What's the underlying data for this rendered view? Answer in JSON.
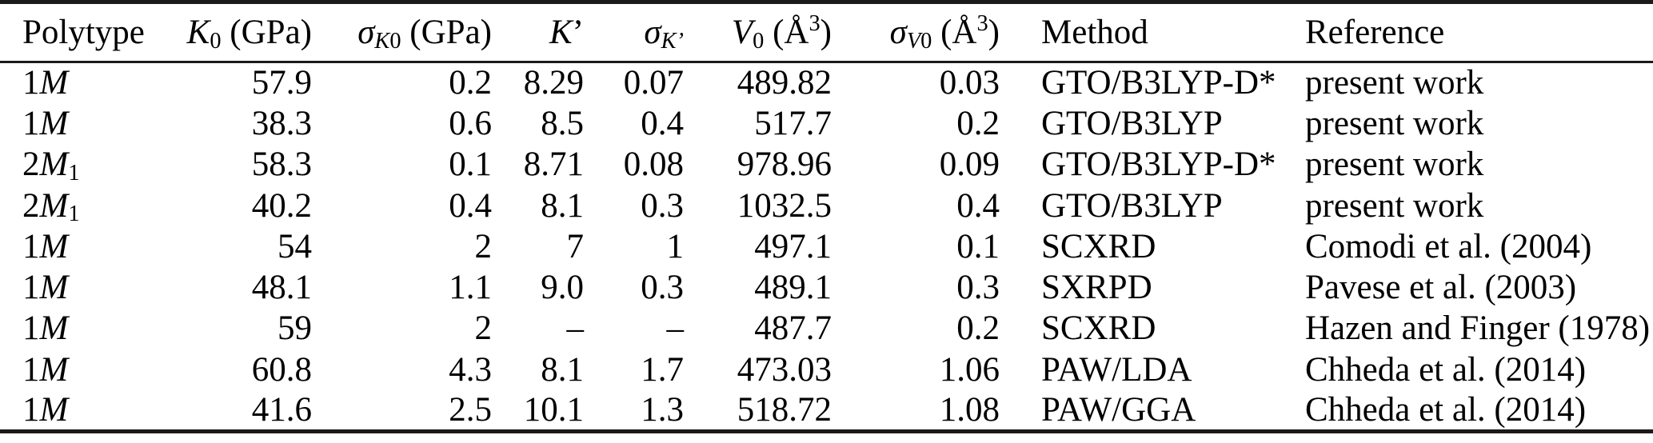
{
  "table": {
    "colors": {
      "text": "#000000",
      "rule": "#1a1a1a",
      "background": "#ffffff"
    },
    "columns": [
      {
        "name": "polytype",
        "align": "left",
        "label": [
          [
            "n",
            "Polytype"
          ]
        ]
      },
      {
        "name": "k0",
        "align": "right",
        "label": [
          [
            "i",
            "K"
          ],
          [
            "sub",
            "0"
          ],
          [
            "n",
            " (GPa)"
          ]
        ]
      },
      {
        "name": "sigma-k0",
        "align": "right",
        "label": [
          [
            "i",
            "σ"
          ],
          [
            "subi",
            "K"
          ],
          [
            "sub",
            "0"
          ],
          [
            "n",
            " (GPa)"
          ]
        ]
      },
      {
        "name": "k-prime",
        "align": "right",
        "label": [
          [
            "i",
            "K"
          ],
          [
            "n",
            "’"
          ]
        ]
      },
      {
        "name": "sigma-k-prime",
        "align": "right",
        "label": [
          [
            "i",
            "σ"
          ],
          [
            "subi",
            "K’"
          ]
        ]
      },
      {
        "name": "v0",
        "align": "right",
        "label": [
          [
            "i",
            "V"
          ],
          [
            "sub",
            "0"
          ],
          [
            "n",
            " (Å"
          ],
          [
            "sup",
            "3"
          ],
          [
            "n",
            ")"
          ]
        ]
      },
      {
        "name": "sigma-v0",
        "align": "right",
        "label": [
          [
            "i",
            "σ"
          ],
          [
            "subi",
            "V"
          ],
          [
            "sub",
            "0"
          ],
          [
            "n",
            " (Å"
          ],
          [
            "sup",
            "3"
          ],
          [
            "n",
            ")"
          ]
        ]
      },
      {
        "name": "method",
        "align": "left",
        "label": [
          [
            "n",
            "Method"
          ]
        ]
      },
      {
        "name": "reference",
        "align": "left",
        "label": [
          [
            "n",
            "Reference"
          ]
        ]
      }
    ],
    "rows": [
      [
        [
          [
            "n",
            "1"
          ],
          [
            "i",
            "M"
          ]
        ],
        "57.9",
        "0.2",
        "8.29",
        "0.07",
        "489.82",
        "0.03",
        "GTO/B3LYP-D*",
        "present work"
      ],
      [
        [
          [
            "n",
            "1"
          ],
          [
            "i",
            "M"
          ]
        ],
        "38.3",
        "0.6",
        "8.5",
        "0.4",
        "517.7",
        "0.2",
        "GTO/B3LYP",
        "present work"
      ],
      [
        [
          [
            "n",
            "2"
          ],
          [
            "i",
            "M"
          ],
          [
            "sub",
            "1"
          ]
        ],
        "58.3",
        "0.1",
        "8.71",
        "0.08",
        "978.96",
        "0.09",
        "GTO/B3LYP-D*",
        "present work"
      ],
      [
        [
          [
            "n",
            "2"
          ],
          [
            "i",
            "M"
          ],
          [
            "sub",
            "1"
          ]
        ],
        "40.2",
        "0.4",
        "8.1",
        "0.3",
        "1032.5",
        "0.4",
        "GTO/B3LYP",
        "present work"
      ],
      [
        [
          [
            "n",
            "1"
          ],
          [
            "i",
            "M"
          ]
        ],
        "54",
        "2",
        "7",
        "1",
        "497.1",
        "0.1",
        "SCXRD",
        "Comodi et al. (2004)"
      ],
      [
        [
          [
            "n",
            "1"
          ],
          [
            "i",
            "M"
          ]
        ],
        "48.1",
        "1.1",
        "9.0",
        "0.3",
        "489.1",
        "0.3",
        "SXRPD",
        "Pavese et al. (2003)"
      ],
      [
        [
          [
            "n",
            "1"
          ],
          [
            "i",
            "M"
          ]
        ],
        "59",
        "2",
        "–",
        "–",
        "487.7",
        "0.2",
        "SCXRD",
        "Hazen and Finger (1978)"
      ],
      [
        [
          [
            "n",
            "1"
          ],
          [
            "i",
            "M"
          ]
        ],
        "60.8",
        "4.3",
        "8.1",
        "1.7",
        "473.03",
        "1.06",
        "PAW/LDA",
        "Chheda et al. (2014)"
      ],
      [
        [
          [
            "n",
            "1"
          ],
          [
            "i",
            "M"
          ]
        ],
        "41.6",
        "2.5",
        "10.1",
        "1.3",
        "518.72",
        "1.08",
        "PAW/GGA",
        "Chheda et al. (2014)"
      ]
    ]
  }
}
